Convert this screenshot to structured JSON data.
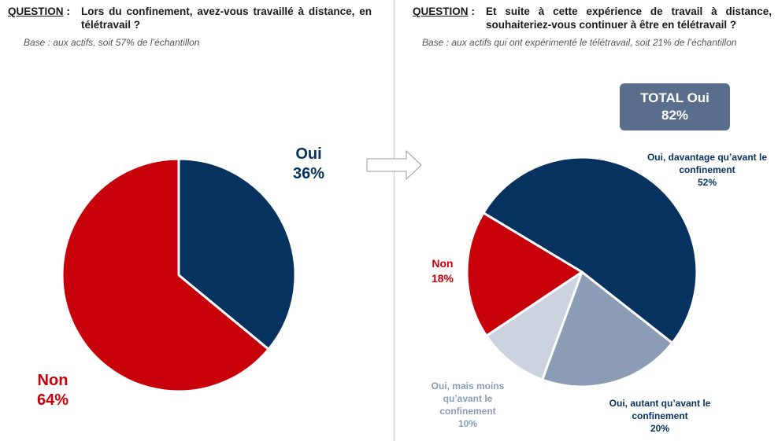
{
  "left": {
    "question_label": "QUESTION",
    "question_text": "Lors du confinement, avez-vous travaillé à distance, en télétravail ?",
    "base": "Base : aux actifs, soit 57% de l’échantillon"
  },
  "right": {
    "question_label": "QUESTION",
    "question_text": "Et suite à cette expérience de travail à distance, souhaiteriez-vous continuer à être en télétravail ?",
    "base": "Base : aux actifs qui ont expérimenté le télétravail, soit 21% de l’échantillon",
    "total_label": "TOTAL Oui",
    "total_value": "82%"
  },
  "chart_data": [
    {
      "type": "pie",
      "title": "",
      "slices": [
        {
          "label": "Oui",
          "value": 36,
          "display": "36%",
          "color": "#06325f"
        },
        {
          "label": "Non",
          "value": 64,
          "display": "64%",
          "color": "#c8000a"
        }
      ]
    },
    {
      "type": "pie",
      "title": "",
      "slices": [
        {
          "label": "Oui, davantage qu’avant le confinement",
          "value": 52,
          "display": "52%",
          "color": "#06325f"
        },
        {
          "label": "Oui, autant qu’avant le confinement",
          "value": 20,
          "display": "20%",
          "color": "#8a9cb6"
        },
        {
          "label": "Oui, mais moins qu’avant le confinement",
          "value": 10,
          "display": "10%",
          "color": "#ccd3de"
        },
        {
          "label": "Non",
          "value": 18,
          "display": "18%",
          "color": "#c8000a"
        }
      ]
    }
  ]
}
